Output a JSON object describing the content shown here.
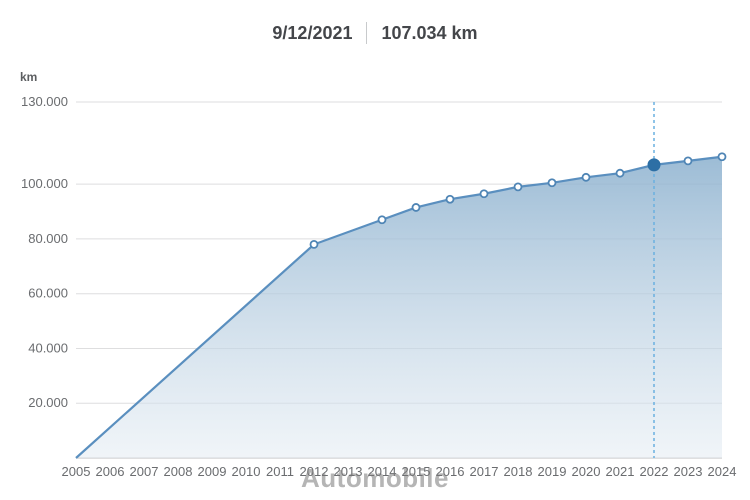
{
  "header": {
    "date": "9/12/2021",
    "value": "107.034 km"
  },
  "chart": {
    "type": "area",
    "y_unit_label": "km",
    "y_ticks": [
      20000,
      40000,
      60000,
      80000,
      100000,
      130000
    ],
    "y_tick_labels": [
      "20.000",
      "40.000",
      "60.000",
      "80.000",
      "100.000",
      "130.000"
    ],
    "ylim": [
      0,
      130000
    ],
    "x_categories": [
      "2005",
      "2006",
      "2007",
      "2008",
      "2009",
      "2010",
      "2011",
      "2012",
      "2013",
      "2014",
      "2015",
      "2016",
      "2017",
      "2018",
      "2019",
      "2020",
      "2021",
      "2022",
      "2023",
      "2024"
    ],
    "data_points": [
      {
        "x_index": 0,
        "y": 0,
        "marker": false
      },
      {
        "x_index": 7,
        "y": 78000,
        "marker": true
      },
      {
        "x_index": 9,
        "y": 87000,
        "marker": true
      },
      {
        "x_index": 10,
        "y": 91500,
        "marker": true
      },
      {
        "x_index": 11,
        "y": 94500,
        "marker": true
      },
      {
        "x_index": 12,
        "y": 96500,
        "marker": true
      },
      {
        "x_index": 13,
        "y": 99000,
        "marker": true
      },
      {
        "x_index": 14,
        "y": 100500,
        "marker": true
      },
      {
        "x_index": 15,
        "y": 102500,
        "marker": true
      },
      {
        "x_index": 16,
        "y": 104000,
        "marker": true
      },
      {
        "x_index": 17,
        "y": 107034,
        "marker": true,
        "highlight": true
      },
      {
        "x_index": 18,
        "y": 108500,
        "marker": true
      },
      {
        "x_index": 19,
        "y": 110000,
        "marker": true
      }
    ],
    "line_color": "#5a8fbf",
    "line_width": 2.2,
    "marker_radius": 3.5,
    "marker_fill": "#ffffff",
    "marker_stroke": "#4f85b5",
    "highlight_marker_radius": 6,
    "highlight_marker_fill": "#2d6fa5",
    "highlight_dash_color": "#6ab0e0",
    "area_gradient_top": "#8bb0ce",
    "area_gradient_bottom": "#e4ecf3",
    "grid_color": "#dededf",
    "axis_label_color": "#6a6c6f",
    "axis_label_fontsize": 13,
    "background": "#ffffff"
  },
  "watermark": "Automobile"
}
